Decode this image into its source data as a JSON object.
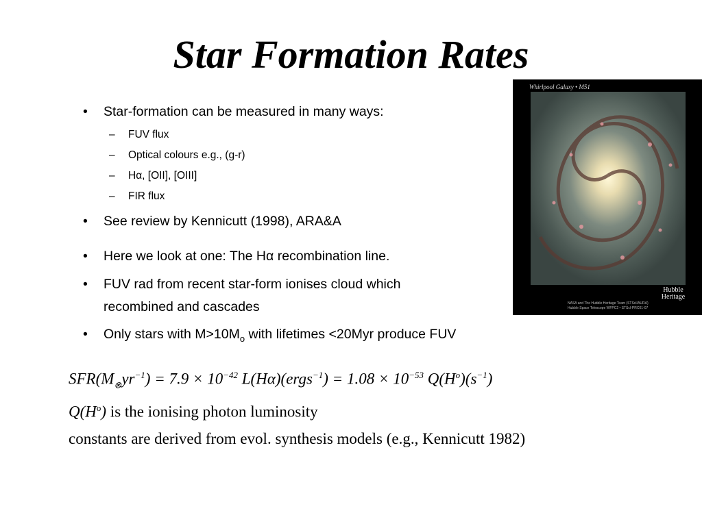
{
  "title": "Star Formation Rates",
  "bullets": [
    {
      "text": "Star-formation can be measured in many ways:",
      "subs": [
        "FUV flux",
        "Optical colours e.g., (g-r)",
        "Hα, [OII], [OIII]",
        "FIR flux"
      ]
    },
    {
      "text": "See review by Kennicutt (1998), ARA&A"
    },
    {
      "text": "Here we look at one: The Hα recombination line."
    },
    {
      "lines": [
        "FUV rad from recent star-form ionises cloud which",
        "recombined and cascades"
      ]
    },
    {
      "parts": [
        "Only stars with M>10M",
        "o",
        " with lifetimes <20Myr produce FUV"
      ]
    }
  ],
  "image": {
    "caption": "Whirlpool Galaxy • M51",
    "logo": [
      "Hubble",
      "Heritage"
    ],
    "credit": [
      "NASA and The Hubble Heritage Team (STScI/AURA)",
      "Hubble Space Telescope WFPC2 • STScI-PRC01-07"
    ]
  },
  "equation": [
    "SFR(M",
    "⊗",
    "yr",
    "−1",
    ") = 7.9 × 10",
    "−42",
    " L(Hα)(ergs",
    "−1",
    ") = 1.08 × 10",
    "−53",
    " Q(H",
    "o",
    ")(s",
    "−1",
    ")"
  ],
  "definition": [
    "Q(H",
    "o",
    ")",
    " is the ionising photon luminosity"
  ],
  "note": "constants are derived from evol. synthesis models (e.g., Kennicutt 1982)"
}
